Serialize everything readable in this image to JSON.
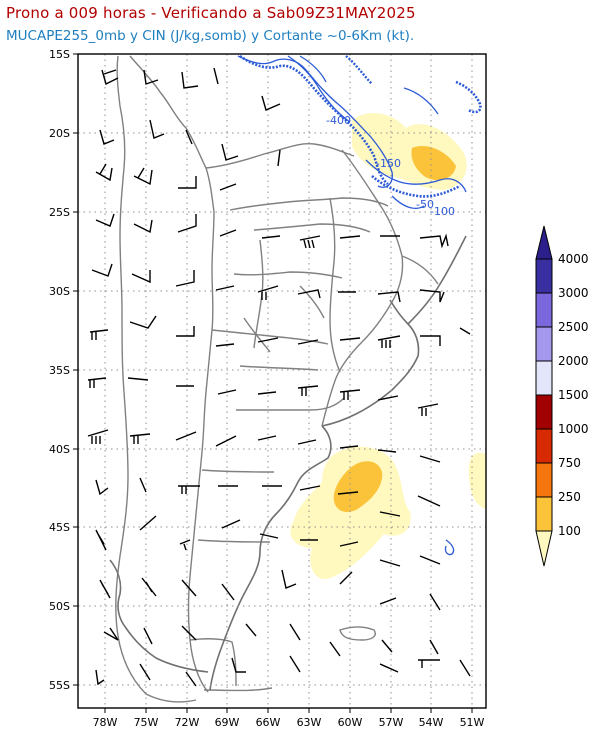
{
  "header": {
    "title": "Prono a 009 horas - Verificando a Sab09Z31MAY2025",
    "subtitle": "MUCAPE255_0mb y CIN (J/kg,somb) y Cortante ~0-6Km (kt)."
  },
  "map": {
    "lon_range": [
      -80,
      -50
    ],
    "lat_range": [
      -56,
      -15
    ],
    "lat_ticks": [
      "15S",
      "20S",
      "25S",
      "30S",
      "35S",
      "40S",
      "45S",
      "50S",
      "55S"
    ],
    "lon_ticks": [
      "78W",
      "75W",
      "72W",
      "69W",
      "66W",
      "63W",
      "60W",
      "57W",
      "54W",
      "51W"
    ],
    "grid": "dotted",
    "contour_labels": [
      "-400",
      "-150",
      "-50",
      "-100"
    ]
  },
  "colorbar": {
    "levels": [
      "100",
      "250",
      "750",
      "1000",
      "1500",
      "2000",
      "2500",
      "3000",
      "4000"
    ],
    "colors": [
      "#fff9bf",
      "#fbc33a",
      "#f6760d",
      "#d72a00",
      "#a10000",
      "#e3e6fb",
      "#a497ee",
      "#7a68dc",
      "#3a2fa0",
      "#2b1f8c"
    ],
    "placement": "right"
  },
  "colors": {
    "title": "#b20000",
    "subtitle": "#1e7fc0",
    "borders": "#808080",
    "cin_contours": "#2d5bd6",
    "barbs": "#000000"
  }
}
